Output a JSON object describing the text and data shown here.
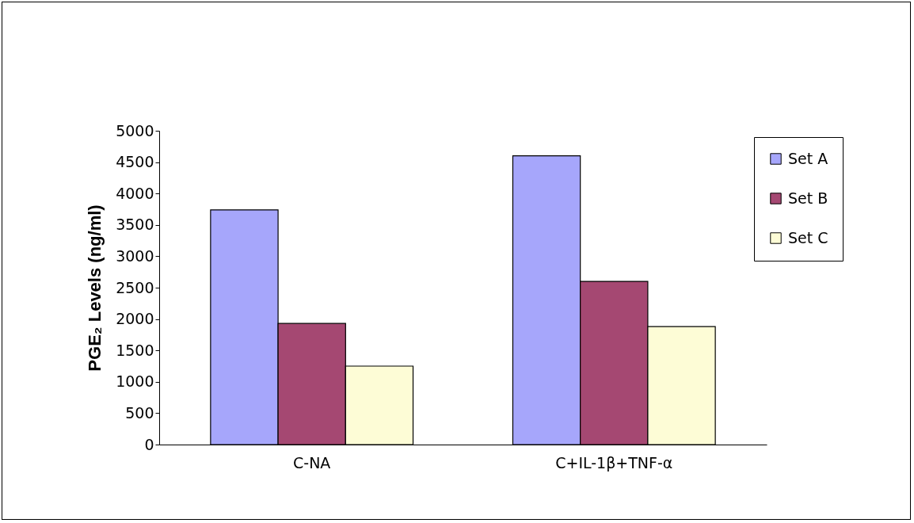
{
  "chart_data": {
    "type": "bar",
    "ylabel": "PGE₂ Levels (ng/ml)",
    "categories": [
      "C-NA",
      "C+IL-1β+TNF-α"
    ],
    "series": [
      {
        "name": "Set A",
        "color": "#a6a6fb",
        "values": [
          3740,
          4600
        ]
      },
      {
        "name": "Set B",
        "color": "#a54872",
        "values": [
          1930,
          2600
        ]
      },
      {
        "name": "Set C",
        "color": "#fdfcd6",
        "values": [
          1250,
          1880
        ]
      }
    ],
    "ylim": [
      0,
      5000
    ],
    "yticks": [
      0,
      500,
      1000,
      1500,
      2000,
      2500,
      3000,
      3500,
      4000,
      4500,
      5000
    ],
    "grid": false,
    "legend": "right"
  }
}
